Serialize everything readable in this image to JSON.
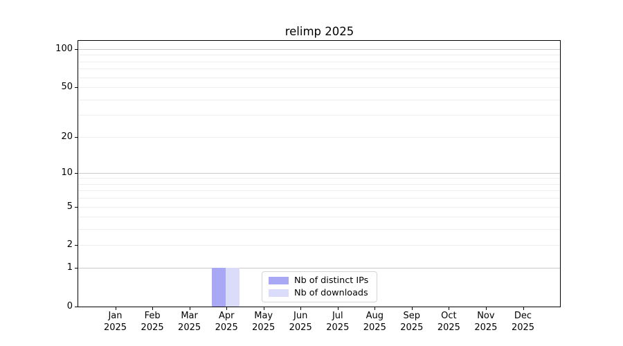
{
  "figure": {
    "background": "#ffffff"
  },
  "chart_data": {
    "type": "bar",
    "title": "relimp 2025",
    "categories": [
      "Jan 2025",
      "Feb 2025",
      "Mar 2025",
      "Apr 2025",
      "May 2025",
      "Jun 2025",
      "Jul 2025",
      "Aug 2025",
      "Sep 2025",
      "Oct 2025",
      "Nov 2025",
      "Dec 2025"
    ],
    "x_tick_month": [
      "Jan",
      "Feb",
      "Mar",
      "Apr",
      "May",
      "Jun",
      "Jul",
      "Aug",
      "Sep",
      "Oct",
      "Nov",
      "Dec"
    ],
    "x_tick_year": "2025",
    "series": [
      {
        "name": "Nb of distinct IPs",
        "color": "#a8a8f4",
        "values": [
          0,
          0,
          0,
          1,
          0,
          0,
          0,
          0,
          0,
          0,
          0,
          0
        ]
      },
      {
        "name": "Nb of downloads",
        "color": "#dbdbfa",
        "values": [
          0,
          0,
          0,
          1,
          0,
          0,
          0,
          0,
          0,
          0,
          0,
          0
        ]
      }
    ],
    "yscale": "log1p",
    "ylim": [
      0,
      116
    ],
    "ytick_values": [
      100,
      50,
      20,
      10,
      5,
      2,
      1,
      0
    ],
    "ytick_labels": [
      "100",
      "50",
      "20",
      "10",
      "5",
      "2",
      "1",
      "0"
    ],
    "y_major_gridlines": [
      1,
      10,
      100
    ],
    "y_minor_gridlines": [
      2,
      3,
      4,
      5,
      6,
      7,
      8,
      9,
      20,
      30,
      40,
      50,
      60,
      70,
      80,
      90
    ],
    "grid": "horizontal, major and minor",
    "legend_position": "lower center inside plot",
    "colors": {
      "major_grid": "#c9c9c9",
      "minor_grid": "#ededed",
      "spine": "#000000",
      "text": "#000000"
    }
  }
}
